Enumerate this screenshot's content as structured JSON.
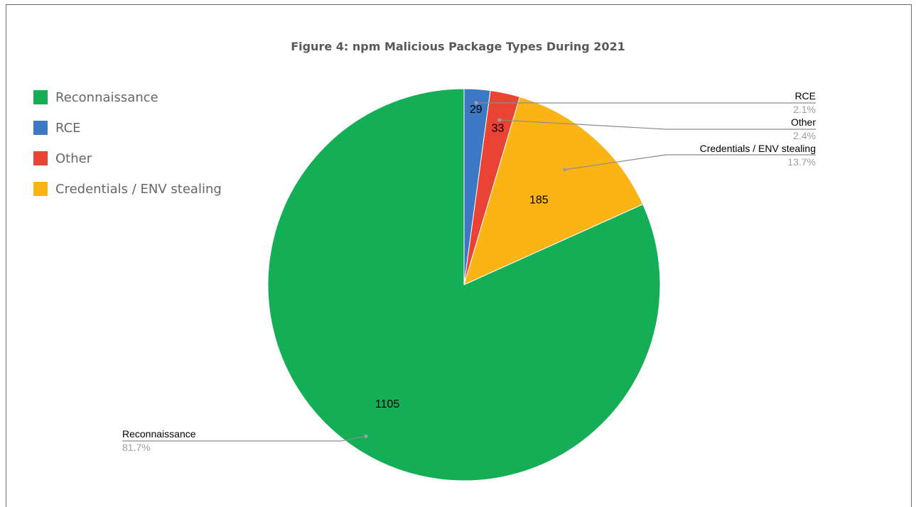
{
  "chart_data": {
    "type": "pie",
    "title": "Figure 4: npm Malicious Package Types During 2021",
    "legend_position": "left",
    "slices": [
      {
        "name": "RCE",
        "value": 29,
        "percent": "2.1%",
        "color": "#3d78c4"
      },
      {
        "name": "Other",
        "value": 33,
        "percent": "2.4%",
        "color": "#ea4336"
      },
      {
        "name": "Credentials / ENV stealing",
        "value": 185,
        "percent": "13.7%",
        "color": "#fbb416"
      },
      {
        "name": "Reconnaissance",
        "value": 1105,
        "percent": "81.7%",
        "color": "#13ae55"
      }
    ],
    "legend": [
      {
        "name": "Reconnaissance",
        "color": "#13ae55"
      },
      {
        "name": "RCE",
        "color": "#3d78c4"
      },
      {
        "name": "Other",
        "color": "#ea4336"
      },
      {
        "name": "Credentials / ENV stealing",
        "color": "#fbb416"
      }
    ]
  }
}
